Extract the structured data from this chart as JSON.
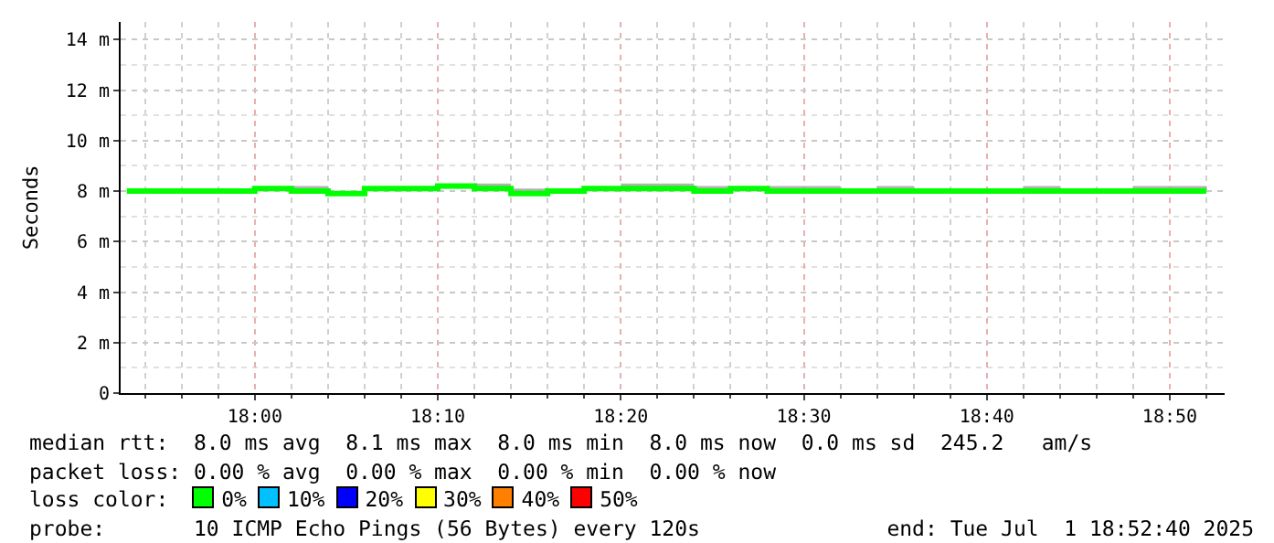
{
  "chart_data": {
    "type": "step",
    "ylabel": "Seconds",
    "x": [
      "2025-07-01T17:53",
      "2025-07-01T17:54",
      "2025-07-01T17:56",
      "2025-07-01T17:58",
      "2025-07-01T18:00",
      "2025-07-01T18:02",
      "2025-07-01T18:04",
      "2025-07-01T18:06",
      "2025-07-01T18:08",
      "2025-07-01T18:10",
      "2025-07-01T18:12",
      "2025-07-01T18:14",
      "2025-07-01T18:16",
      "2025-07-01T18:18",
      "2025-07-01T18:20",
      "2025-07-01T18:22",
      "2025-07-01T18:24",
      "2025-07-01T18:26",
      "2025-07-01T18:28",
      "2025-07-01T18:30",
      "2025-07-01T18:32",
      "2025-07-01T18:34",
      "2025-07-01T18:36",
      "2025-07-01T18:38",
      "2025-07-01T18:40",
      "2025-07-01T18:42",
      "2025-07-01T18:44",
      "2025-07-01T18:46",
      "2025-07-01T18:48",
      "2025-07-01T18:50",
      "2025-07-01T18:52"
    ],
    "series": [
      {
        "color": "#00ff00",
        "values": [
          8.0,
          8.0,
          8.0,
          8.0,
          8.1,
          8.0,
          7.9,
          8.1,
          8.1,
          8.2,
          8.1,
          7.9,
          8.0,
          8.1,
          8.1,
          8.1,
          8.0,
          8.1,
          8.0,
          8.0,
          8.0,
          8.0,
          8.0,
          8.0,
          8.0,
          8.0,
          8.0,
          8.0,
          8.0,
          8.0,
          8.0
        ],
        "lower": [
          8.0,
          8.0,
          8.0,
          8.0,
          8.0,
          8.0,
          7.9,
          8.1,
          8.1,
          8.1,
          8.1,
          7.9,
          8.0,
          8.0,
          8.0,
          8.0,
          8.0,
          8.0,
          8.0,
          8.0,
          7.9,
          8.0,
          8.0,
          8.0,
          8.0,
          8.0,
          8.0,
          8.0,
          8.0,
          8.0,
          8.0
        ],
        "upper": [
          8.0,
          8.0,
          8.1,
          8.0,
          8.1,
          8.2,
          8.0,
          8.1,
          8.1,
          8.2,
          8.3,
          8.1,
          8.0,
          8.1,
          8.3,
          8.3,
          8.2,
          8.1,
          8.2,
          8.2,
          8.1,
          8.2,
          8.1,
          8.0,
          8.1,
          8.2,
          8.0,
          8.1,
          8.2,
          8.2,
          8.2
        ]
      }
    ],
    "xlim": [
      "2025-07-01T17:52:40",
      "2025-07-01T18:53"
    ],
    "xticks": [
      {
        "value": "2025-07-01T18:00",
        "label": "18:00"
      },
      {
        "value": "2025-07-01T18:10",
        "label": "18:10"
      },
      {
        "value": "2025-07-01T18:20",
        "label": "18:20"
      },
      {
        "value": "2025-07-01T18:30",
        "label": "18:30"
      },
      {
        "value": "2025-07-01T18:40",
        "label": "18:40"
      },
      {
        "value": "2025-07-01T18:50",
        "label": "18:50"
      }
    ],
    "ylim": [
      0,
      14.7
    ],
    "yticks": [
      0,
      {
        "value": 2,
        "label": "2 m"
      },
      {
        "value": 4,
        "label": "4 m"
      },
      {
        "value": 6,
        "label": "6 m"
      },
      {
        "value": 8,
        "label": "8 m"
      },
      {
        "value": 10,
        "label": "10 m"
      },
      {
        "value": 12,
        "label": "12 m"
      },
      {
        "value": 14,
        "label": "14 m"
      }
    ],
    "grid": true,
    "annotations": [
      "median rtt:  8.0 ms avg  8.1 ms max  8.0 ms min  8.0 ms now  0.0 ms sd  245.2   am/s",
      "packet loss: 0.00 % avg  0.00 % max  0.00 % min  0.00 % now",
      "loss color:  0%  10%  20%  30%  40%  50%",
      "probe:       10 ICMP Echo Pings (56 Bytes) every 120s",
      "end: Tue Jul  1 18:52:40 2025"
    ]
  }
}
